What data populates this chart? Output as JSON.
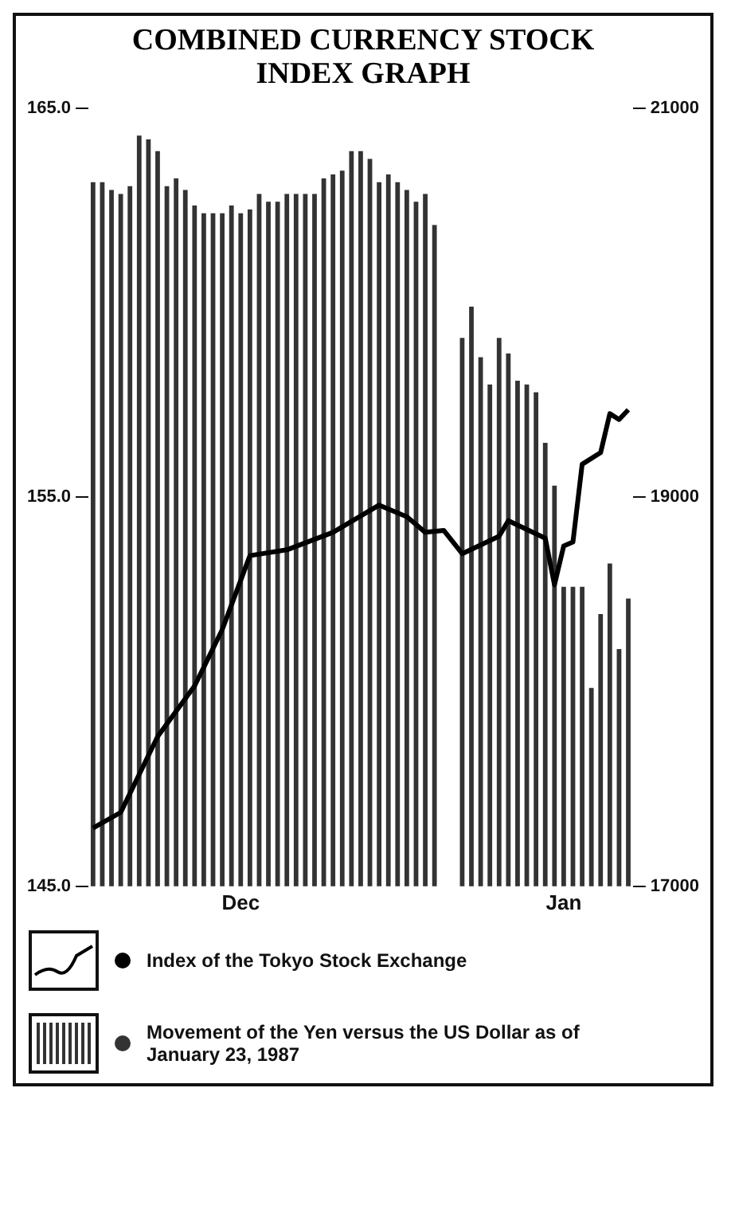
{
  "chart_data": {
    "type": "bar",
    "title": "COMBINED CURRENCY STOCK INDEX GRAPH",
    "categories": [
      null,
      null,
      null,
      null,
      null,
      null,
      null,
      null,
      null,
      null,
      null,
      null,
      null,
      null,
      null,
      null,
      "Dec",
      null,
      null,
      null,
      null,
      null,
      null,
      null,
      null,
      null,
      null,
      null,
      null,
      null,
      null,
      null,
      null,
      null,
      null,
      null,
      null,
      null,
      null,
      null,
      null,
      null,
      null,
      null,
      null,
      null,
      null,
      null,
      null,
      null,
      null,
      "Jan",
      null,
      null,
      null,
      null,
      null,
      null,
      null
    ],
    "series": [
      {
        "name": "Index of the Tokyo Stock Exchange",
        "type": "line",
        "axis": "y2",
        "color": "#000000",
        "values": [
          17300,
          null,
          null,
          17380,
          null,
          null,
          null,
          17770,
          null,
          null,
          null,
          18030,
          null,
          null,
          18320,
          null,
          null,
          18700,
          null,
          null,
          null,
          18730,
          null,
          null,
          null,
          null,
          18820,
          null,
          null,
          null,
          null,
          18960,
          null,
          null,
          18900,
          null,
          18820,
          null,
          18830,
          null,
          18710,
          null,
          null,
          null,
          18800,
          18880,
          null,
          null,
          null,
          18790,
          18550,
          18750,
          18770,
          19170,
          null,
          19230,
          19430,
          19400,
          19450
        ]
      },
      {
        "name": "Movement of the Yen versus the US Dollar as of January 23, 1987",
        "axis": "y",
        "color": "#333333",
        "values": [
          163.1,
          163.1,
          162.9,
          162.8,
          163.0,
          164.3,
          164.2,
          163.9,
          163.0,
          163.2,
          162.9,
          162.5,
          162.3,
          162.3,
          162.3,
          162.5,
          162.3,
          162.4,
          162.8,
          162.6,
          162.6,
          162.8,
          162.8,
          162.8,
          162.8,
          163.2,
          163.3,
          163.4,
          163.9,
          163.9,
          163.7,
          163.1,
          163.3,
          163.1,
          162.9,
          162.6,
          162.8,
          162.0,
          null,
          null,
          159.1,
          159.9,
          158.6,
          157.9,
          159.1,
          158.7,
          158.0,
          157.9,
          157.7,
          156.4,
          155.3,
          152.7,
          152.7,
          152.7,
          150.1,
          152.0,
          153.3,
          151.1,
          152.4
        ]
      }
    ],
    "ylim": [
      145,
      165
    ],
    "yticks": [
      {
        "value": 145,
        "label": "145.0"
      },
      {
        "value": 155,
        "label": "155.0"
      },
      {
        "value": 165,
        "label": "165.0"
      }
    ],
    "y2lim": [
      17000,
      21000
    ],
    "y2ticks": [
      17000,
      19000,
      21000
    ],
    "grid": false,
    "legend": "bottom",
    "marker": "none"
  }
}
